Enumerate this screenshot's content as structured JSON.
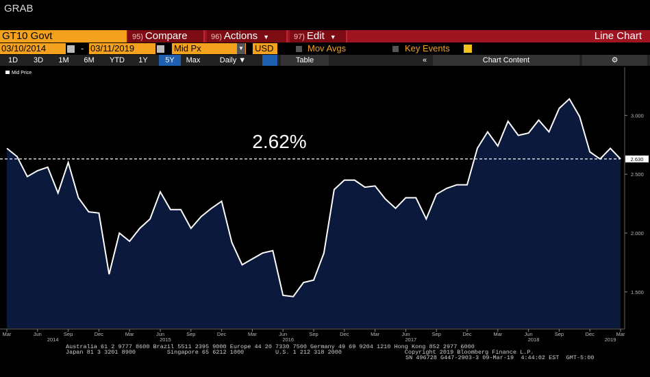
{
  "header": {
    "title": "GRAB"
  },
  "toolbar": {
    "security": "GT10 Govt",
    "menus": [
      {
        "number": "95)",
        "label": "Compare"
      },
      {
        "number": "96)",
        "label": "Actions"
      },
      {
        "number": "97)",
        "label": "Edit"
      }
    ],
    "view": "Line Chart"
  },
  "range": {
    "start": "03/10/2014",
    "end": "03/11/2019",
    "field": "Mid Px",
    "currency": "USD",
    "mov_avgs": "Mov Avgs",
    "key_events": "Key Events"
  },
  "periods": [
    "1D",
    "3D",
    "1M",
    "6M",
    "YTD",
    "1Y",
    "5Y",
    "Max"
  ],
  "selected_period": "5Y",
  "frequency": "Daily",
  "table": "Table",
  "chart_content": "Chart Content",
  "footer": [
    "Australia 61 2 9777 8600 Brazil 5511 2395 9000 Europe 44 20 7330 7500 Germany 49 69 9204 1210 Hong Kong 852 2977 6000",
    "Japan 81 3 3201 8900         Singapore 65 6212 1000         U.S. 1 212 318 2000                  Copyright 2019 Bloomberg Finance L.P.",
    "SN 496728 G447-2903-3 09-Mar-19  4:44:02 EST  GMT-5:00"
  ],
  "chart_data": {
    "type": "line",
    "annotation": "2.62%",
    "reference_line": {
      "value": 2.63,
      "label": "2.630"
    },
    "x": [
      "2014-03",
      "2014-04",
      "2014-05",
      "2014-06",
      "2014-07",
      "2014-08",
      "2014-09",
      "2014-10",
      "2014-11",
      "2014-12",
      "2015-01",
      "2015-02",
      "2015-03",
      "2015-04",
      "2015-05",
      "2015-06",
      "2015-07",
      "2015-08",
      "2015-09",
      "2015-10",
      "2015-11",
      "2015-12",
      "2016-01",
      "2016-02",
      "2016-03",
      "2016-04",
      "2016-05",
      "2016-06",
      "2016-07",
      "2016-08",
      "2016-09",
      "2016-10",
      "2016-11",
      "2016-12",
      "2017-01",
      "2017-02",
      "2017-03",
      "2017-04",
      "2017-05",
      "2017-06",
      "2017-07",
      "2017-08",
      "2017-09",
      "2017-10",
      "2017-11",
      "2017-12",
      "2018-01",
      "2018-02",
      "2018-03",
      "2018-04",
      "2018-05",
      "2018-06",
      "2018-07",
      "2018-08",
      "2018-09",
      "2018-10",
      "2018-11",
      "2018-12",
      "2019-01",
      "2019-02",
      "2019-03"
    ],
    "series": [
      {
        "name": "Mid Price",
        "color": "#ffffff",
        "fill": "#0b1a3c",
        "values": [
          2.72,
          2.65,
          2.48,
          2.53,
          2.56,
          2.34,
          2.6,
          2.3,
          2.18,
          2.17,
          1.65,
          2.0,
          1.93,
          2.04,
          2.12,
          2.35,
          2.2,
          2.2,
          2.04,
          2.14,
          2.21,
          2.27,
          1.92,
          1.73,
          1.78,
          1.83,
          1.85,
          1.47,
          1.46,
          1.58,
          1.6,
          1.83,
          2.37,
          2.45,
          2.45,
          2.39,
          2.4,
          2.29,
          2.21,
          2.3,
          2.3,
          2.12,
          2.33,
          2.38,
          2.41,
          2.41,
          2.72,
          2.86,
          2.74,
          2.95,
          2.83,
          2.85,
          2.96,
          2.86,
          3.06,
          3.14,
          2.99,
          2.69,
          2.63,
          2.72,
          2.63
        ]
      }
    ],
    "xticks": [
      {
        "value": "2014-03",
        "label": "Mar"
      },
      {
        "value": "2014-06",
        "label": "Jun"
      },
      {
        "value": "2014-09",
        "label": "Sep"
      },
      {
        "value": "2014-12",
        "label": "Dec"
      },
      {
        "value": "2015-03",
        "label": "Mar"
      },
      {
        "value": "2015-06",
        "label": "Jun"
      },
      {
        "value": "2015-09",
        "label": "Sep"
      },
      {
        "value": "2015-12",
        "label": "Dec"
      },
      {
        "value": "2016-03",
        "label": "Mar"
      },
      {
        "value": "2016-06",
        "label": "Jun"
      },
      {
        "value": "2016-09",
        "label": "Sep"
      },
      {
        "value": "2016-12",
        "label": "Dec"
      },
      {
        "value": "2017-03",
        "label": "Mar"
      },
      {
        "value": "2017-06",
        "label": "Jun"
      },
      {
        "value": "2017-09",
        "label": "Sep"
      },
      {
        "value": "2017-12",
        "label": "Dec"
      },
      {
        "value": "2018-03",
        "label": "Mar"
      },
      {
        "value": "2018-06",
        "label": "Jun"
      },
      {
        "value": "2018-09",
        "label": "Sep"
      },
      {
        "value": "2018-12",
        "label": "Dec"
      },
      {
        "value": "2019-03",
        "label": "Mar"
      }
    ],
    "year_labels": [
      "2014",
      "2015",
      "2016",
      "2017",
      "2018",
      "2019"
    ],
    "ylim": [
      1.19,
      3.41
    ],
    "yticks": [
      {
        "value": 1.5,
        "label": "1.500"
      },
      {
        "value": 2,
        "label": "2.000"
      },
      {
        "value": 2.5,
        "label": "2.500"
      },
      {
        "value": 3,
        "label": "3.000"
      }
    ]
  }
}
